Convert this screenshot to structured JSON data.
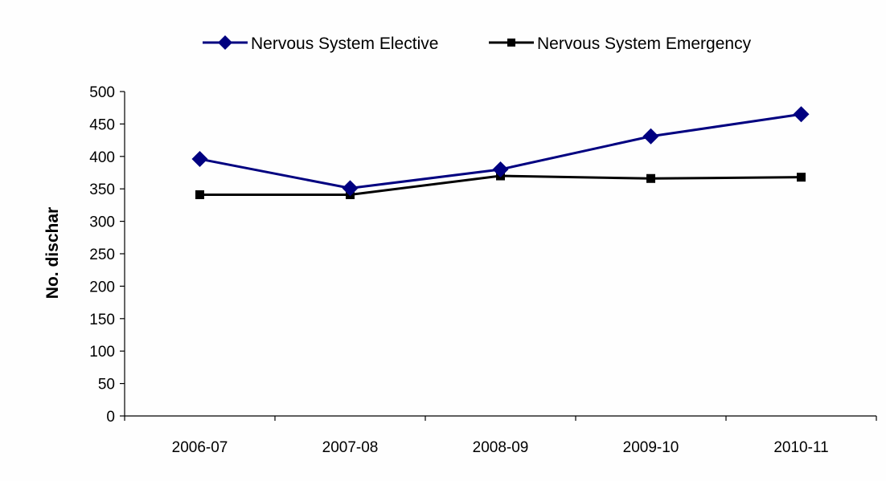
{
  "chart_data": {
    "type": "line",
    "categories": [
      "2006-07",
      "2007-08",
      "2008-09",
      "2009-10",
      "2010-11"
    ],
    "series": [
      {
        "name": "Nervous System Elective",
        "values": [
          396,
          351,
          380,
          431,
          465
        ],
        "color": "#000080",
        "marker": "diamond"
      },
      {
        "name": "Nervous System Emergency",
        "values": [
          341,
          341,
          370,
          366,
          368
        ],
        "color": "#000000",
        "marker": "square"
      }
    ],
    "ylabel": "No. dischar",
    "xlabel": "",
    "ylim": [
      0,
      500
    ],
    "yticks": [
      0,
      50,
      100,
      150,
      200,
      250,
      300,
      350,
      400,
      450,
      500
    ],
    "grid": false,
    "legend": "top"
  }
}
